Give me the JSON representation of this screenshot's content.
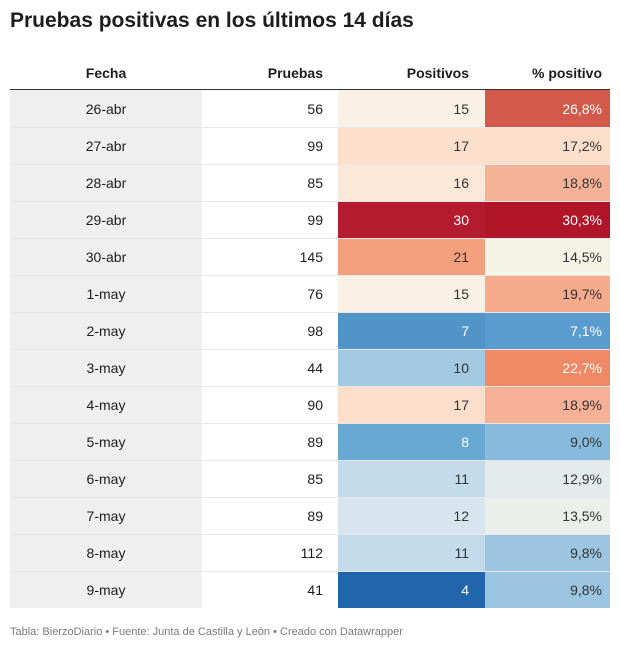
{
  "title": "Pruebas positivas en los últimos 14 días",
  "footer": "Tabla: BierzoDiario • Fuente: Junta de Castilla y León • Creado con Datawrapper",
  "chart_data": {
    "type": "table",
    "title": "Pruebas positivas en los últimos 14 días",
    "columns": [
      "Fecha",
      "Pruebas",
      "Positivos",
      "% positivo"
    ],
    "rows": [
      {
        "fecha": "26-abr",
        "pruebas": "56",
        "positivos": "15",
        "pct": "26,8%",
        "positivos_color": "#f9f1e6",
        "pct_color": "#d35a4b",
        "positivos_text": "#333333",
        "pct_text": "#ffffff"
      },
      {
        "fecha": "27-abr",
        "pruebas": "99",
        "positivos": "17",
        "pct": "17,2%",
        "positivos_color": "#fbdfcb",
        "pct_color": "#fbdfcb",
        "positivos_text": "#333333",
        "pct_text": "#333333"
      },
      {
        "fecha": "28-abr",
        "pruebas": "85",
        "positivos": "16",
        "pct": "18,8%",
        "positivos_color": "#fbe8d8",
        "pct_color": "#f5b196",
        "positivos_text": "#333333",
        "pct_text": "#333333"
      },
      {
        "fecha": "29-abr",
        "pruebas": "99",
        "positivos": "30",
        "pct": "30,3%",
        "positivos_color": "#b41b2e",
        "pct_color": "#b1152a",
        "positivos_text": "#ffffff",
        "pct_text": "#ffffff"
      },
      {
        "fecha": "30-abr",
        "pruebas": "145",
        "positivos": "21",
        "pct": "14,5%",
        "positivos_color": "#f4a07c",
        "pct_color": "#f3f3e6",
        "positivos_text": "#333333",
        "pct_text": "#333333"
      },
      {
        "fecha": "1-may",
        "pruebas": "76",
        "positivos": "15",
        "pct": "19,7%",
        "positivos_color": "#f9f1e6",
        "pct_color": "#f5ab8c",
        "positivos_text": "#333333",
        "pct_text": "#333333"
      },
      {
        "fecha": "2-may",
        "pruebas": "98",
        "positivos": "7",
        "pct": "7,1%",
        "positivos_color": "#5094c8",
        "pct_color": "#5a9ccd",
        "positivos_text": "#ffffff",
        "pct_text": "#ffffff"
      },
      {
        "fecha": "3-may",
        "pruebas": "44",
        "positivos": "10",
        "pct": "22,7%",
        "positivos_color": "#a3c9e2",
        "pct_color": "#f08a66",
        "positivos_text": "#333333",
        "pct_text": "#ffffff"
      },
      {
        "fecha": "4-may",
        "pruebas": "90",
        "positivos": "17",
        "pct": "18,9%",
        "positivos_color": "#fbdfcb",
        "pct_color": "#f5b095",
        "positivos_text": "#333333",
        "pct_text": "#333333"
      },
      {
        "fecha": "5-may",
        "pruebas": "89",
        "positivos": "8",
        "pct": "9,0%",
        "positivos_color": "#68a9d4",
        "pct_color": "#87bbdd",
        "positivos_text": "#ffffff",
        "pct_text": "#333333"
      },
      {
        "fecha": "6-may",
        "pruebas": "85",
        "positivos": "11",
        "pct": "12,9%",
        "positivos_color": "#c3dbea",
        "pct_color": "#e4ebec",
        "positivos_text": "#333333",
        "pct_text": "#333333"
      },
      {
        "fecha": "7-may",
        "pruebas": "89",
        "positivos": "12",
        "pct": "13,5%",
        "positivos_color": "#d7e6ee",
        "pct_color": "#ebefe9",
        "positivos_text": "#333333",
        "pct_text": "#333333"
      },
      {
        "fecha": "8-may",
        "pruebas": "112",
        "positivos": "11",
        "pct": "9,8%",
        "positivos_color": "#c3dbea",
        "pct_color": "#9bc5e0",
        "positivos_text": "#333333",
        "pct_text": "#333333"
      },
      {
        "fecha": "9-may",
        "pruebas": "41",
        "positivos": "4",
        "pct": "9,8%",
        "positivos_color": "#2165ad",
        "pct_color": "#9bc5e0",
        "positivos_text": "#ffffff",
        "pct_text": "#333333"
      }
    ]
  }
}
